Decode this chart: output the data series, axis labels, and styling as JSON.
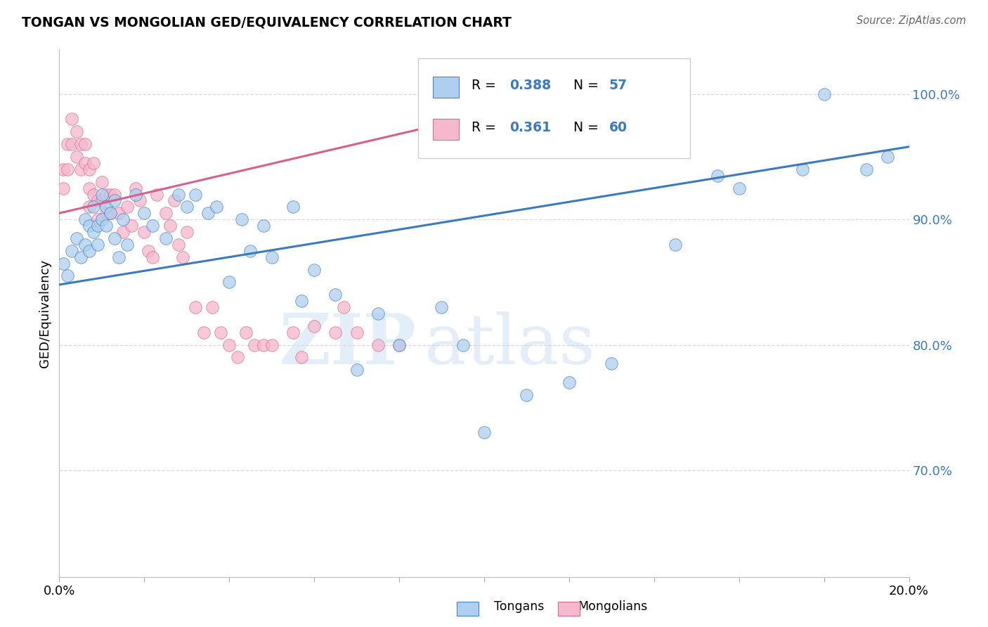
{
  "title": "TONGAN VS MONGOLIAN GED/EQUIVALENCY CORRELATION CHART",
  "source": "Source: ZipAtlas.com",
  "ylabel": "GED/Equivalency",
  "right_yticks": [
    "100.0%",
    "90.0%",
    "80.0%",
    "70.0%"
  ],
  "right_ytick_vals": [
    1.0,
    0.9,
    0.8,
    0.7
  ],
  "background_color": "#ffffff",
  "grid_color": "#d8d8d8",
  "tongan_color": "#aecfef",
  "mongolian_color": "#f5b8cc",
  "tongan_line_color": "#3a7abf",
  "mongolian_line_color": "#d9608a",
  "R_tongan": 0.388,
  "N_tongan": 57,
  "R_mongolian": 0.361,
  "N_mongolian": 60,
  "watermark_zip": "ZIP",
  "watermark_atlas": "atlas",
  "xlim": [
    0.0,
    0.2
  ],
  "ylim": [
    0.615,
    1.035
  ],
  "tongan_x": [
    0.001,
    0.002,
    0.003,
    0.004,
    0.005,
    0.006,
    0.006,
    0.007,
    0.007,
    0.008,
    0.008,
    0.009,
    0.009,
    0.01,
    0.01,
    0.011,
    0.011,
    0.012,
    0.013,
    0.013,
    0.014,
    0.015,
    0.016,
    0.018,
    0.02,
    0.022,
    0.025,
    0.028,
    0.03,
    0.032,
    0.035,
    0.037,
    0.04,
    0.043,
    0.045,
    0.048,
    0.05,
    0.055,
    0.057,
    0.06,
    0.065,
    0.07,
    0.075,
    0.08,
    0.09,
    0.095,
    0.1,
    0.11,
    0.12,
    0.13,
    0.145,
    0.155,
    0.16,
    0.175,
    0.18,
    0.19,
    0.195
  ],
  "tongan_y": [
    0.865,
    0.855,
    0.875,
    0.885,
    0.87,
    0.88,
    0.9,
    0.875,
    0.895,
    0.89,
    0.91,
    0.895,
    0.88,
    0.92,
    0.9,
    0.895,
    0.91,
    0.905,
    0.915,
    0.885,
    0.87,
    0.9,
    0.88,
    0.92,
    0.905,
    0.895,
    0.885,
    0.92,
    0.91,
    0.92,
    0.905,
    0.91,
    0.85,
    0.9,
    0.875,
    0.895,
    0.87,
    0.91,
    0.835,
    0.86,
    0.84,
    0.78,
    0.825,
    0.8,
    0.83,
    0.8,
    0.73,
    0.76,
    0.77,
    0.785,
    0.88,
    0.935,
    0.925,
    0.94,
    1.0,
    0.94,
    0.95
  ],
  "mongolian_x": [
    0.001,
    0.001,
    0.002,
    0.002,
    0.003,
    0.003,
    0.004,
    0.004,
    0.005,
    0.005,
    0.006,
    0.006,
    0.007,
    0.007,
    0.007,
    0.008,
    0.008,
    0.009,
    0.009,
    0.01,
    0.01,
    0.011,
    0.011,
    0.012,
    0.012,
    0.013,
    0.014,
    0.015,
    0.016,
    0.017,
    0.018,
    0.019,
    0.02,
    0.021,
    0.022,
    0.023,
    0.025,
    0.026,
    0.027,
    0.028,
    0.029,
    0.03,
    0.032,
    0.034,
    0.036,
    0.038,
    0.04,
    0.042,
    0.044,
    0.046,
    0.048,
    0.05,
    0.055,
    0.057,
    0.06,
    0.065,
    0.067,
    0.07,
    0.075,
    0.08
  ],
  "mongolian_y": [
    0.925,
    0.94,
    0.94,
    0.96,
    0.96,
    0.98,
    0.95,
    0.97,
    0.94,
    0.96,
    0.945,
    0.96,
    0.91,
    0.925,
    0.94,
    0.92,
    0.945,
    0.915,
    0.9,
    0.93,
    0.915,
    0.92,
    0.905,
    0.905,
    0.92,
    0.92,
    0.905,
    0.89,
    0.91,
    0.895,
    0.925,
    0.915,
    0.89,
    0.875,
    0.87,
    0.92,
    0.905,
    0.895,
    0.915,
    0.88,
    0.87,
    0.89,
    0.83,
    0.81,
    0.83,
    0.81,
    0.8,
    0.79,
    0.81,
    0.8,
    0.8,
    0.8,
    0.81,
    0.79,
    0.815,
    0.81,
    0.83,
    0.81,
    0.8,
    0.8
  ],
  "tongan_line_x": [
    0.0,
    0.2
  ],
  "tongan_line_y": [
    0.848,
    0.958
  ],
  "mongolian_line_x": [
    0.0,
    0.095
  ],
  "mongolian_line_y": [
    0.905,
    0.98
  ]
}
